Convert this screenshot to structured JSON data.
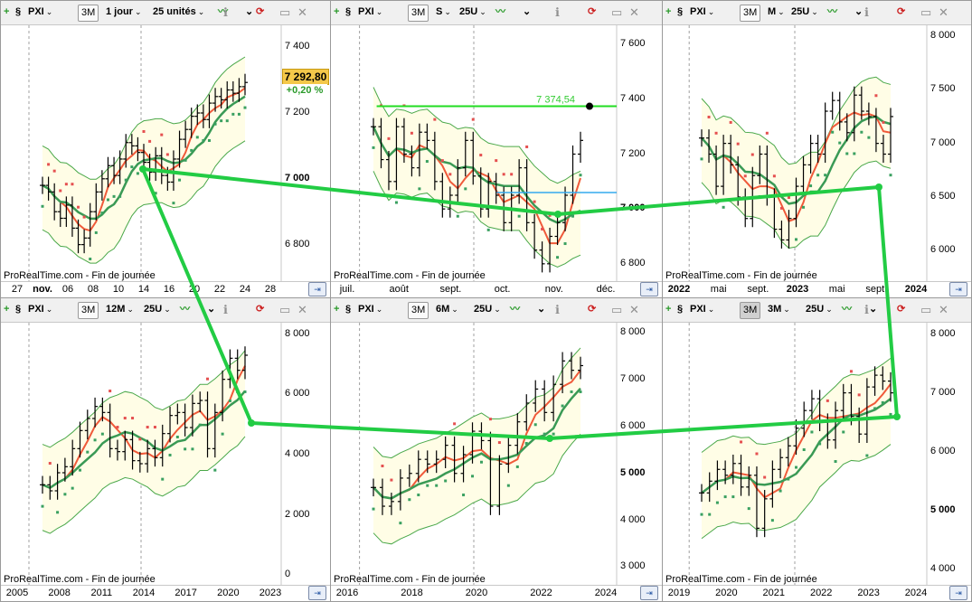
{
  "app": {
    "attribution": "ProRealTime.com - Fin de journée"
  },
  "colors": {
    "band_fill": "#fffde6",
    "band_line": "#4aa84a",
    "ma_red": "#f05a3a",
    "ma_green": "#3a9a55",
    "sar": "#e55050",
    "sar_green": "#3aa060",
    "connector": "#22cc44",
    "target": "#22dd22",
    "cyan_line": "#33aaee"
  },
  "panels": [
    {
      "id": "p1",
      "symbol": "PXI",
      "tf_button": "3M",
      "period": "1 jour",
      "units": "25 unités",
      "ticks_y": [
        "7 400",
        "7 200",
        "7 000",
        "6 800"
      ],
      "bold_y": "7 000",
      "ticks_x": [
        "27",
        "nov.",
        "06",
        "08",
        "10",
        "14",
        "16",
        "20",
        "22",
        "24",
        "28"
      ],
      "bold_x": "nov.",
      "last_price": "7 292,80",
      "change": "+0,20 %"
    },
    {
      "id": "p2",
      "symbol": "PXI",
      "tf_button": "3M",
      "period": "S",
      "units": "25U",
      "ticks_y": [
        "7 600",
        "7 400",
        "7 200",
        "7 000",
        "6 800"
      ],
      "bold_y": "7 000",
      "ticks_x": [
        "juil.",
        "août",
        "sept.",
        "oct.",
        "nov.",
        "déc."
      ],
      "bold_x": "",
      "target_label": "7 374,54"
    },
    {
      "id": "p3",
      "symbol": "PXI",
      "tf_button": "3M",
      "period": "M",
      "units": "25U",
      "ticks_y": [
        "8 000",
        "7 500",
        "7 000",
        "6 500",
        "6 000"
      ],
      "bold_y": "",
      "ticks_x": [
        "2022",
        "mai",
        "sept.",
        "2023",
        "mai",
        "sept.",
        "2024"
      ],
      "bold_x": "2022,2023,2024"
    },
    {
      "id": "p4",
      "symbol": "PXI",
      "tf_button": "3M",
      "period": "12M",
      "units": "25U",
      "ticks_y": [
        "8 000",
        "6 000",
        "4 000",
        "2 000",
        "0"
      ],
      "bold_y": "",
      "ticks_x": [
        "2005",
        "2008",
        "2011",
        "2014",
        "2017",
        "2020",
        "2023"
      ],
      "bold_x": ""
    },
    {
      "id": "p5",
      "symbol": "PXI",
      "tf_button": "3M",
      "period": "6M",
      "units": "25U",
      "ticks_y": [
        "8 000",
        "7 000",
        "6 000",
        "5 000",
        "4 000",
        "3 000"
      ],
      "bold_y": "5 000",
      "ticks_x": [
        "2016",
        "2018",
        "2020",
        "2022",
        "2024"
      ],
      "bold_x": ""
    },
    {
      "id": "p6",
      "symbol": "PXI",
      "tf_button": "3M",
      "period": "3M",
      "units": "25U",
      "ticks_y": [
        "8 000",
        "7 000",
        "6 000",
        "5 000",
        "4 000"
      ],
      "bold_y": "5 000",
      "ticks_x": [
        "2019",
        "2020",
        "2021",
        "2022",
        "2023",
        "2024"
      ],
      "bold_x": ""
    }
  ],
  "chart_data": [
    {
      "panel": "p1",
      "type": "ohlc",
      "series": [
        {
          "name": "PXI"
        }
      ],
      "ylim": [
        6700,
        7450
      ],
      "last": 7292.8,
      "close": [
        6980,
        6960,
        6900,
        6880,
        6920,
        6850,
        6800,
        6820,
        6900,
        6960,
        7000,
        7040,
        7010,
        7060,
        7110,
        7100,
        7080,
        7050,
        7020,
        7070,
        7010,
        6990,
        7060,
        7120,
        7150,
        7190,
        7200,
        7180,
        7230,
        7250,
        7240,
        7270,
        7260,
        7280,
        7292.8
      ]
    },
    {
      "panel": "p2",
      "type": "ohlc",
      "series": [
        {
          "name": "PXI"
        }
      ],
      "ylim": [
        6750,
        7650
      ],
      "target": 7374.54,
      "close": [
        7300,
        7180,
        7100,
        7300,
        7200,
        7150,
        7280,
        7250,
        7100,
        7000,
        7050,
        7150,
        7250,
        7120,
        7000,
        7100,
        7050,
        6950,
        7050,
        7150,
        6950,
        6850,
        6800,
        6900,
        6950,
        7050,
        7200,
        7250
      ]
    },
    {
      "panel": "p3",
      "type": "ohlc",
      "series": [
        {
          "name": "PXI"
        }
      ],
      "ylim": [
        5750,
        8050
      ],
      "close": [
        7050,
        6900,
        6600,
        7000,
        6800,
        6500,
        6300,
        6700,
        6900,
        6500,
        6200,
        6100,
        6300,
        6600,
        6800,
        7000,
        6900,
        7300,
        7400,
        7200,
        7100,
        7450,
        7300,
        7250,
        7000,
        6900,
        7250
      ]
    },
    {
      "panel": "p4",
      "type": "ohlc",
      "series": [
        {
          "name": "PXI"
        }
      ],
      "ylim": [
        -200,
        8200
      ],
      "close": [
        3000,
        2800,
        3400,
        3600,
        4200,
        4800,
        5200,
        5600,
        5400,
        4200,
        4100,
        4500,
        3800,
        3700,
        4200,
        3900,
        4700,
        5300,
        5400,
        4900,
        5700,
        5800,
        4200,
        5400,
        6500,
        7200,
        6800,
        7300
      ]
    },
    {
      "panel": "p5",
      "type": "ohlc",
      "series": [
        {
          "name": "PXI"
        }
      ],
      "ylim": [
        2700,
        8100
      ],
      "close": [
        4700,
        4300,
        4400,
        4900,
        5000,
        5300,
        5200,
        5300,
        5600,
        5000,
        5400,
        5900,
        5700,
        4300,
        5200,
        5600,
        6100,
        6500,
        6800,
        6300,
        6900,
        7400,
        7200,
        7300
      ]
    },
    {
      "panel": "p6",
      "type": "ohlc",
      "series": [
        {
          "name": "PXI"
        }
      ],
      "ylim": [
        3800,
        8100
      ],
      "close": [
        5300,
        5500,
        5700,
        5600,
        5800,
        5400,
        5600,
        4700,
        5200,
        5700,
        5900,
        6100,
        6400,
        6700,
        6900,
        6500,
        6200,
        6700,
        7000,
        6600,
        6300,
        7100,
        7300,
        7200,
        7000
      ]
    }
  ]
}
